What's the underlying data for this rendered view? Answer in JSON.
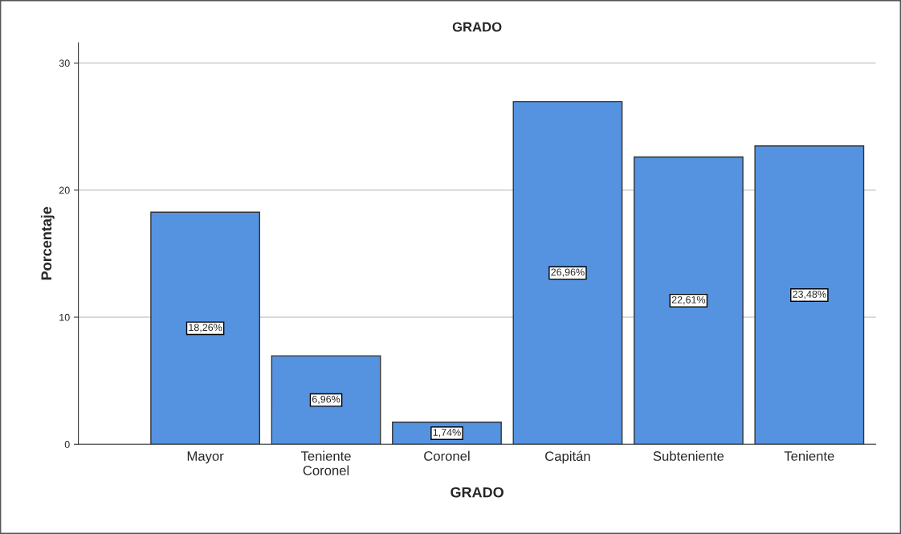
{
  "chart_data": {
    "type": "bar",
    "title": "GRADO",
    "xlabel": "GRADO",
    "ylabel": "Porcentaje",
    "categories": [
      "Mayor",
      "Teniente Coronel",
      "Coronel",
      "Capitán",
      "Subteniente",
      "Teniente"
    ],
    "values": [
      18.26,
      6.96,
      1.74,
      26.96,
      22.61,
      23.48
    ],
    "value_labels": [
      "18,26%",
      "6,96%",
      "1,74%",
      "26,96%",
      "22,61%",
      "23,48%"
    ],
    "color": "#5593e0",
    "ylim": [
      0,
      31.6
    ],
    "yticks": [
      0,
      10,
      20,
      30
    ],
    "grid": "y"
  }
}
